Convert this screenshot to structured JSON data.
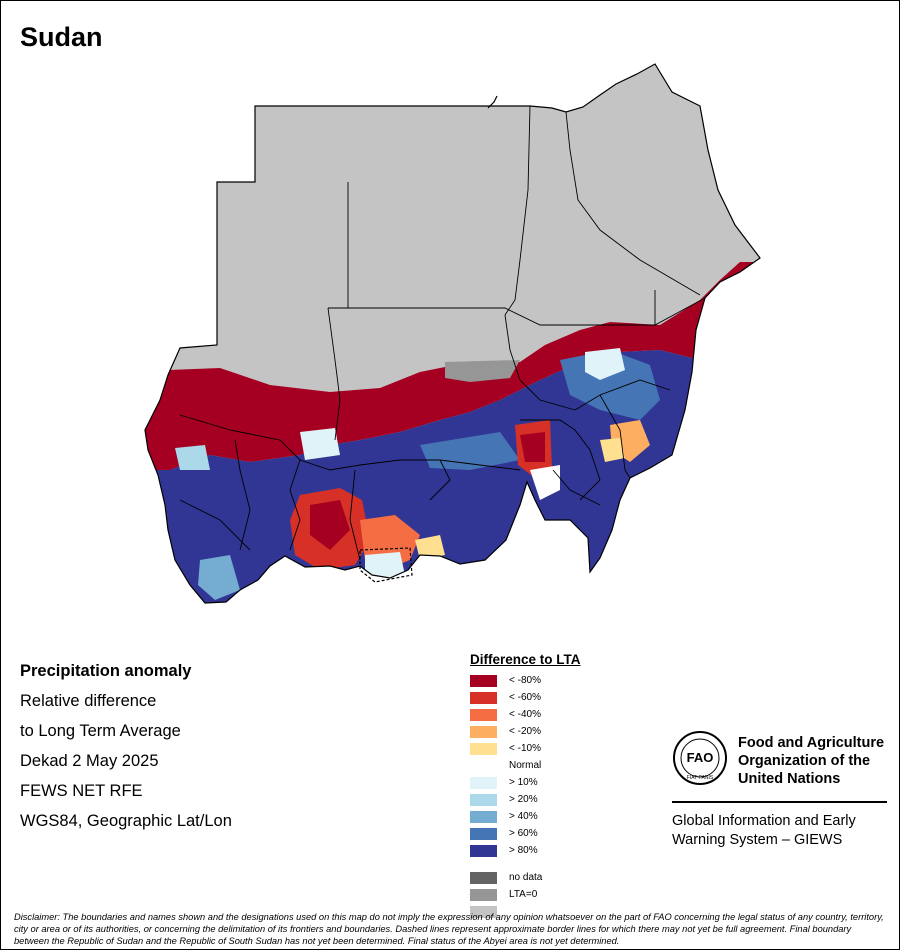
{
  "map": {
    "title": "Sudan",
    "colors": {
      "no_rain_area": "#c4c4c4",
      "boundary": "#000000"
    }
  },
  "info_block": {
    "line1": "Precipitation anomaly",
    "line2": "Relative difference",
    "line3": "to Long Term Average",
    "line4": "Dekad 2 May 2025",
    "line5": "FEWS NET RFE",
    "line6": "WGS84, Geographic Lat/Lon"
  },
  "legend": {
    "title": "Difference to LTA",
    "classes": [
      {
        "label": "< -80%",
        "color": "#a50021"
      },
      {
        "label": "< -60%",
        "color": "#d73027"
      },
      {
        "label": "< -40%",
        "color": "#f46d43"
      },
      {
        "label": "< -20%",
        "color": "#fdae61"
      },
      {
        "label": "< -10%",
        "color": "#fee090"
      },
      {
        "label": "Normal",
        "color": "#ffffff"
      },
      {
        "label": "> 10%",
        "color": "#e0f3f8"
      },
      {
        "label": "> 20%",
        "color": "#abd9e9"
      },
      {
        "label": "> 40%",
        "color": "#74add1"
      },
      {
        "label": "> 60%",
        "color": "#4575b4"
      },
      {
        "label": "> 80%",
        "color": "#313695"
      }
    ],
    "extra": [
      {
        "label": "no data",
        "color": "#636363"
      },
      {
        "label": "LTA=0",
        "color": "#969696"
      },
      {
        "label": "",
        "color": "#c4c4c4"
      }
    ]
  },
  "org": {
    "name_line1": "Food and Agriculture",
    "name_line2": "Organization of the",
    "name_line3": "United Nations",
    "giews_line1": "Global Information and Early",
    "giews_line2": "Warning System – GIEWS",
    "logo_text": "FAO",
    "logo_motto": "FIAT PANIS"
  },
  "disclaimer": "Disclaimer: The boundaries and names shown and the designations used on this map do not imply the expression of any opinion whatsoever on the part of FAO concerning the legal status of any country, territory, city or area or of its authorities, or concerning the delimitation of its frontiers and boundaries. Dashed lines represent approximate border lines for which there may not yet be full agreement. Final boundary between the Republic of Sudan and the Republic of South Sudan has not yet been determined. Final status of the Abyei area is not yet determined."
}
